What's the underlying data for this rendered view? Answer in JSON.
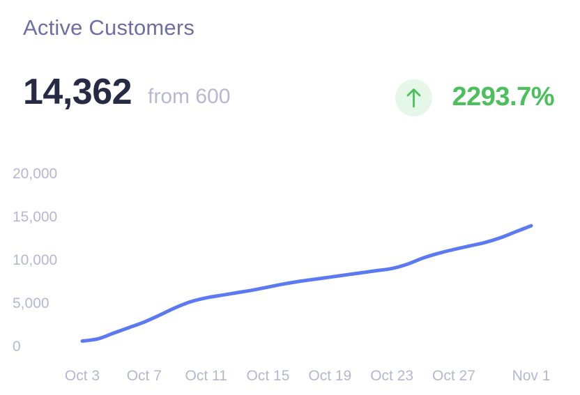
{
  "card": {
    "title": "Active Customers",
    "value": "14,362",
    "from_text": "from 600",
    "change_percent": "2293.7%",
    "change_direction_icon": "arrow-up-icon"
  },
  "colors": {
    "line": "#5b79f0",
    "positive": "#4bbf5b",
    "positive_bg": "#e5f7e9",
    "title": "#6e6ea3",
    "axis_text": "#b4b7d1"
  },
  "chart_data": {
    "type": "line",
    "title": "",
    "xlabel": "",
    "ylabel": "",
    "ylim": [
      0,
      20000
    ],
    "grid": false,
    "y_ticks": [
      "0",
      "5,000",
      "10,000",
      "15,000",
      "20,000"
    ],
    "x_ticks": [
      "Oct 3",
      "Oct 7",
      "Oct 11",
      "Oct 15",
      "Oct 19",
      "Oct 23",
      "Oct 27",
      "Nov 1"
    ],
    "x": [
      "Oct 3",
      "Oct 4",
      "Oct 5",
      "Oct 6",
      "Oct 7",
      "Oct 8",
      "Oct 9",
      "Oct 10",
      "Oct 11",
      "Oct 12",
      "Oct 13",
      "Oct 14",
      "Oct 15",
      "Oct 16",
      "Oct 17",
      "Oct 18",
      "Oct 19",
      "Oct 20",
      "Oct 21",
      "Oct 22",
      "Oct 23",
      "Oct 24",
      "Oct 25",
      "Oct 26",
      "Oct 27",
      "Oct 28",
      "Oct 29",
      "Oct 30",
      "Oct 31",
      "Nov 1"
    ],
    "series": [
      {
        "values": [
          600,
          850,
          1500,
          2150,
          2800,
          3600,
          4450,
          5150,
          5600,
          5900,
          6200,
          6500,
          6850,
          7200,
          7500,
          7750,
          8000,
          8250,
          8500,
          8750,
          9000,
          9500,
          10200,
          10750,
          11200,
          11600,
          12000,
          12550,
          13250,
          13950
        ]
      }
    ]
  }
}
